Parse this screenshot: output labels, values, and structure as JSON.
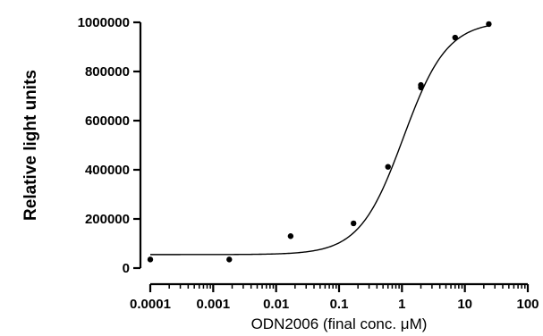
{
  "chart_data": {
    "type": "scatter",
    "title": "",
    "xlabel": "ODN2006 (final conc. μM)",
    "ylabel": "Relative light units",
    "x_scale": "log",
    "xlim": [
      0.0001,
      100
    ],
    "ylim": [
      0,
      1000000
    ],
    "x_ticks": [
      0.0001,
      0.001,
      0.01,
      0.1,
      1,
      10,
      100
    ],
    "x_tick_labels": [
      "0.0001",
      "0.001",
      "0.01",
      "0.1",
      "1",
      "10",
      "100"
    ],
    "y_ticks": [
      0,
      200000,
      400000,
      600000,
      800000,
      1000000
    ],
    "y_tick_labels": [
      "0",
      "200000",
      "400000",
      "600000",
      "800000",
      "1000000"
    ],
    "grid": false,
    "legend": "none",
    "series": [
      {
        "marker": "circle",
        "color": "#000000",
        "points": [
          {
            "x": 0.0001,
            "y": 35000
          },
          {
            "x": 0.0018,
            "y": 35000
          },
          {
            "x": 0.017,
            "y": 130000
          },
          {
            "x": 0.17,
            "y": 182000
          },
          {
            "x": 0.6,
            "y": 412000
          },
          {
            "x": 2.0,
            "y": 735000
          },
          {
            "x": 2.0,
            "y": 745000
          },
          {
            "x": 7.0,
            "y": 938000
          },
          {
            "x": 24.0,
            "y": 993000
          }
        ]
      }
    ],
    "fit_curve": {
      "model": "four-parameter logistic",
      "bottom": 55000,
      "top": 1005000,
      "ec50": 1.05,
      "hill_slope": 1.25,
      "x_range": [
        0.0001,
        24
      ]
    }
  }
}
